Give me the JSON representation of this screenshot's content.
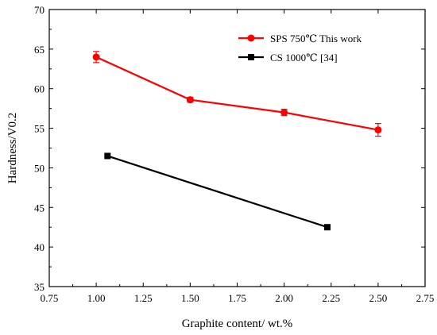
{
  "chart_data": {
    "type": "line",
    "title": "",
    "xlabel": "Graphite content/ wt.%",
    "ylabel": "Hardness/V0.2",
    "xlim": [
      0.75,
      2.75
    ],
    "ylim": [
      35,
      70
    ],
    "xticks": [
      "0.75",
      "1.00",
      "1.25",
      "1.50",
      "1.75",
      "2.00",
      "2.25",
      "2.50",
      "2.75"
    ],
    "yticks": [
      "35",
      "40",
      "45",
      "50",
      "55",
      "60",
      "65",
      "70"
    ],
    "grid": false,
    "legend_position": "top-right",
    "series": [
      {
        "name": "SPS 750℃   This work",
        "color": "#ff0000",
        "marker": "circle",
        "x": [
          1.0,
          1.5,
          2.0,
          2.5
        ],
        "y": [
          64.0,
          58.6,
          57.0,
          54.8
        ],
        "error": [
          0.7,
          0.3,
          0.4,
          0.8
        ]
      },
      {
        "name": "CS  1000℃     [34]",
        "color": "#000000",
        "marker": "square",
        "x": [
          1.06,
          2.23
        ],
        "y": [
          51.5,
          42.5
        ],
        "error": []
      }
    ]
  }
}
